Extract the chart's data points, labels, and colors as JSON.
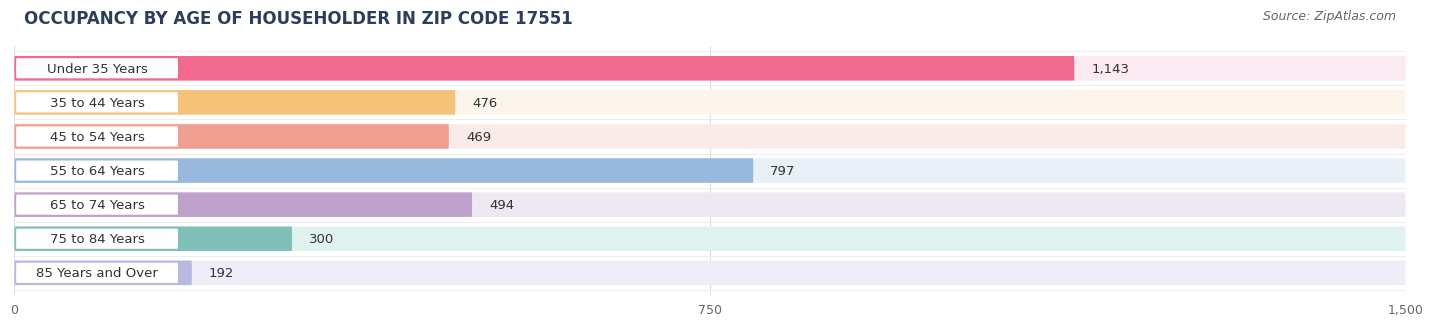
{
  "title": "OCCUPANCY BY AGE OF HOUSEHOLDER IN ZIP CODE 17551",
  "source": "Source: ZipAtlas.com",
  "categories": [
    "Under 35 Years",
    "35 to 44 Years",
    "45 to 54 Years",
    "55 to 64 Years",
    "65 to 74 Years",
    "75 to 84 Years",
    "85 Years and Over"
  ],
  "values": [
    1143,
    476,
    469,
    797,
    494,
    300,
    192
  ],
  "bar_colors": [
    "#F0698F",
    "#F5C27A",
    "#F0A090",
    "#98B8DC",
    "#C0A0CC",
    "#80BFBA",
    "#B8B8E0"
  ],
  "bar_bg_colors": [
    "#FCEAF2",
    "#FDF5EC",
    "#FAEAE8",
    "#EAF0F8",
    "#EEE8F4",
    "#E0F2F0",
    "#EEEEF8"
  ],
  "xlim": [
    0,
    1500
  ],
  "xticks": [
    0,
    750,
    1500
  ],
  "xtick_labels": [
    "0",
    "750",
    "1,500"
  ],
  "value_labels": [
    "1,143",
    "476",
    "469",
    "797",
    "494",
    "300",
    "192"
  ],
  "title_fontsize": 12,
  "source_fontsize": 9,
  "label_fontsize": 9.5,
  "tick_fontsize": 9,
  "background_color": "#ffffff",
  "grid_color": "#dddddd",
  "label_box_color": "#ffffff"
}
